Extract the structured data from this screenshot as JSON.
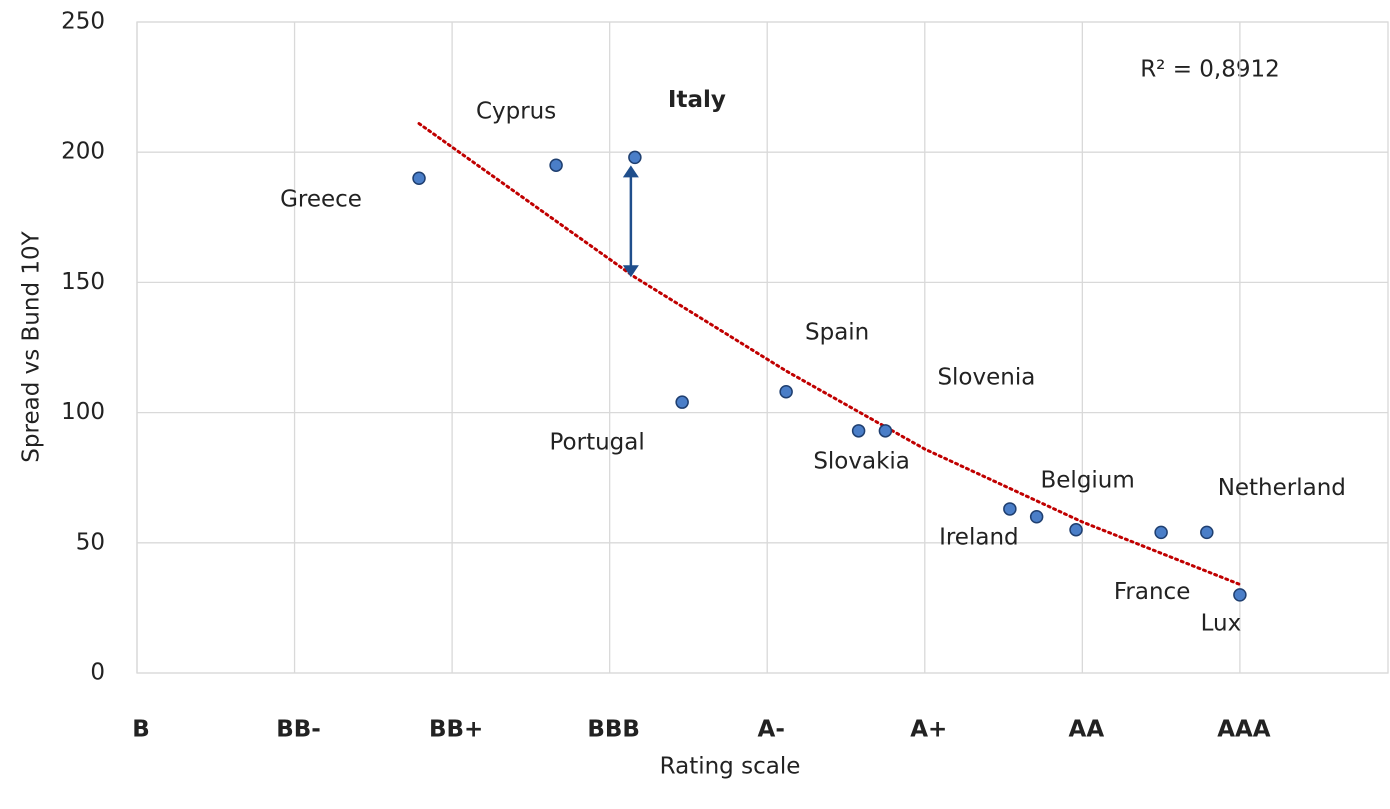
{
  "chart_data": {
    "type": "scatter",
    "x_label": "Rating scale",
    "y_label": "Spread vs Bund 10Y",
    "annotation": "R² = 0,8912",
    "series": [
      {
        "color": "#4a7ec8",
        "x": [
          1.79,
          2.66,
          3.16,
          3.46,
          4.12,
          4.58,
          4.75,
          5.54,
          5.71,
          5.96,
          6.5,
          6.79,
          7.0
        ],
        "values": [
          190,
          195,
          198,
          104,
          108,
          93,
          93,
          63,
          60,
          55,
          54,
          54,
          30
        ],
        "labels": [
          "Greece",
          "Cyprus",
          "Italy",
          "Portugal",
          "Spain",
          "Slovakia",
          "Slovenia",
          "Ireland",
          "Belgium",
          null,
          "France",
          "Netherland",
          "Lux"
        ],
        "highlight": 2
      }
    ],
    "trendline": {
      "color": "#c00000",
      "x": [
        1.79,
        3.16,
        4.12,
        5,
        6,
        7
      ],
      "values": [
        211,
        152,
        116,
        86,
        58,
        34
      ]
    },
    "xlim": [
      0,
      7.94
    ],
    "xticks": [
      {
        "value": 0,
        "label": "B"
      },
      {
        "value": 1,
        "label": "BB-"
      },
      {
        "value": 2,
        "label": "BB+"
      },
      {
        "value": 3,
        "label": "BBB"
      },
      {
        "value": 4,
        "label": "A-"
      },
      {
        "value": 5,
        "label": "A+"
      },
      {
        "value": 6,
        "label": "AA"
      },
      {
        "value": 7,
        "label": "AAA"
      }
    ],
    "ylim": [
      0,
      250
    ],
    "yticks": [
      0,
      50,
      100,
      150,
      200,
      250
    ],
    "grid": true
  }
}
